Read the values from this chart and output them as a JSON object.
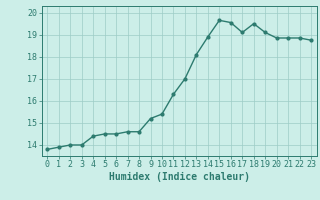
{
  "x": [
    0,
    1,
    2,
    3,
    4,
    5,
    6,
    7,
    8,
    9,
    10,
    11,
    12,
    13,
    14,
    15,
    16,
    17,
    18,
    19,
    20,
    21,
    22,
    23
  ],
  "y": [
    13.8,
    13.9,
    14.0,
    14.0,
    14.4,
    14.5,
    14.5,
    14.6,
    14.6,
    15.2,
    15.4,
    16.3,
    17.0,
    18.1,
    18.9,
    19.65,
    19.55,
    19.1,
    19.5,
    19.1,
    18.85,
    18.85,
    18.85,
    18.75
  ],
  "line_color": "#2d7b6f",
  "marker_color": "#2d7b6f",
  "bg_color": "#cceee8",
  "grid_color": "#9eccc6",
  "xlabel": "Humidex (Indice chaleur)",
  "ylim": [
    13.5,
    20.3
  ],
  "xlim": [
    -0.5,
    23.5
  ],
  "yticks": [
    14,
    15,
    16,
    17,
    18,
    19,
    20
  ],
  "xticks": [
    0,
    1,
    2,
    3,
    4,
    5,
    6,
    7,
    8,
    9,
    10,
    11,
    12,
    13,
    14,
    15,
    16,
    17,
    18,
    19,
    20,
    21,
    22,
    23
  ],
  "font_color": "#2d7b6f",
  "xlabel_fontsize": 7,
  "tick_fontsize": 6,
  "linewidth": 1.0,
  "markersize": 2.0
}
